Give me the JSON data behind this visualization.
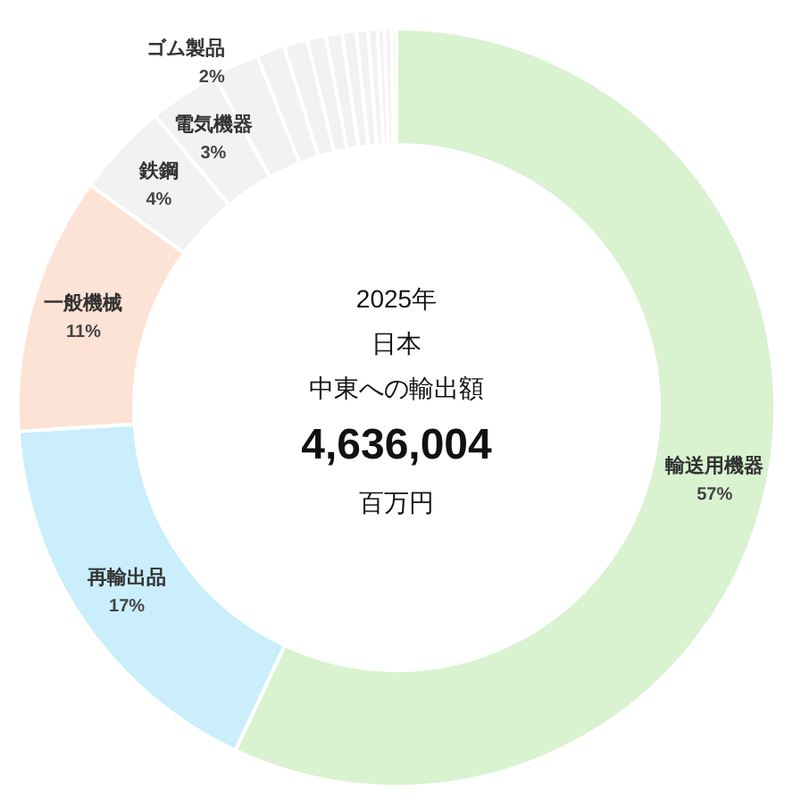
{
  "chart_data": {
    "type": "donut",
    "categories": [
      "輸送用機器",
      "再輸出品",
      "一般機械",
      "鉄鋼",
      "電気機器",
      "ゴム製品",
      null,
      null,
      null,
      null,
      null,
      null,
      null,
      null,
      null,
      null
    ],
    "values": [
      57,
      17,
      11,
      4,
      3,
      2,
      1.2,
      1.0,
      0.8,
      0.7,
      0.6,
      0.5,
      0.4,
      0.3,
      0.3,
      0.2
    ],
    "value_labels": [
      "57%",
      "17%",
      "11%",
      "4%",
      "3%",
      "2%",
      null,
      null,
      null,
      null,
      null,
      null,
      null,
      null,
      null,
      null
    ],
    "colors": [
      "#d9f2d0",
      "#caeefb",
      "#fde3d6",
      "#f2f2f2",
      "#f2f2f2",
      "#f2f2f2",
      "#f2f2f2",
      "#f2f2f2",
      "#f2f2f2",
      "#f2f2f2",
      "#f2f2f2",
      "#f2f2f2",
      "#f2f2f2",
      "#f2f2f2",
      "#f2f2f2",
      "#f2f2f2"
    ],
    "legend": false,
    "annotations": [
      "2025年",
      "日本",
      "中東への輸出額",
      "4,636,004",
      "百万円"
    ]
  }
}
